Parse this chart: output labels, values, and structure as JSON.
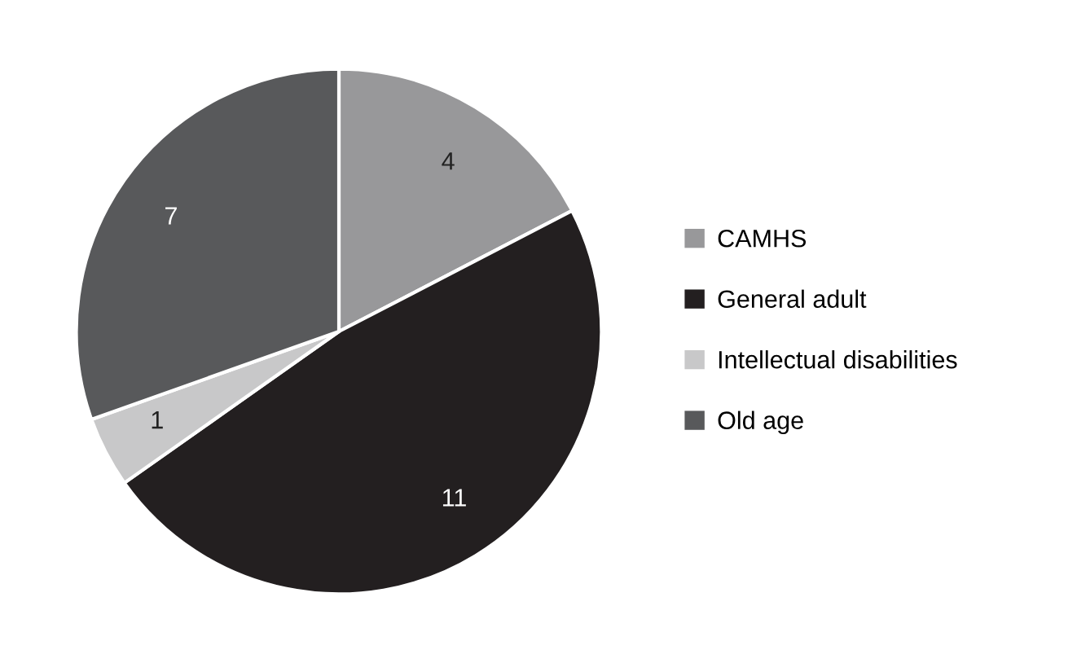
{
  "chart_data": {
    "type": "pie",
    "categories": [
      "CAMHS",
      "General adult",
      "Intellectual disabilities",
      "Old age"
    ],
    "values": [
      4,
      11,
      1,
      7
    ],
    "colors": [
      "#98989a",
      "#231f20",
      "#c8c8c9",
      "#58595b"
    ],
    "data_labels": true,
    "legend": "right"
  }
}
